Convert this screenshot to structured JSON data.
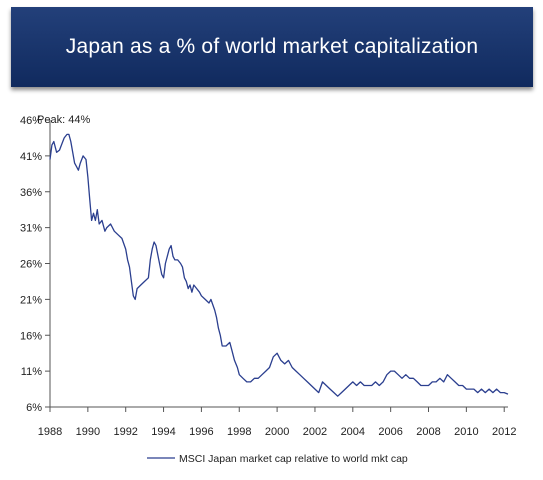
{
  "header": {
    "title": "Japan as a % of world market capitalization"
  },
  "chart_data": {
    "type": "line",
    "title": "Japan as a % of world market capitalization",
    "xlabel": "",
    "ylabel": "",
    "xlim": [
      1988,
      2012.2
    ],
    "ylim": [
      6,
      46
    ],
    "x_ticks": [
      "1988",
      "1990",
      "1992",
      "1994",
      "1996",
      "1998",
      "2000",
      "2002",
      "2004",
      "2006",
      "2008",
      "2010",
      "2012"
    ],
    "y_ticks": [
      "6%",
      "11%",
      "16%",
      "21%",
      "26%",
      "31%",
      "36%",
      "41%",
      "46%"
    ],
    "annotation": {
      "text": "Peak: 44%",
      "x": 1988.9,
      "y": 44
    },
    "legend": {
      "position": "bottom-center"
    },
    "series": [
      {
        "name": "MSCI Japan market cap relative to world mkt cap",
        "color": "#2b3f8f",
        "points": [
          [
            1988.0,
            40.5
          ],
          [
            1988.1,
            42.5
          ],
          [
            1988.2,
            43.0
          ],
          [
            1988.35,
            41.5
          ],
          [
            1988.5,
            41.8
          ],
          [
            1988.6,
            42.5
          ],
          [
            1988.75,
            43.5
          ],
          [
            1988.9,
            44.0
          ],
          [
            1989.0,
            44.0
          ],
          [
            1989.1,
            43.0
          ],
          [
            1989.2,
            41.5
          ],
          [
            1989.3,
            40.0
          ],
          [
            1989.4,
            39.5
          ],
          [
            1989.5,
            39.0
          ],
          [
            1989.6,
            40.0
          ],
          [
            1989.75,
            41.0
          ],
          [
            1989.9,
            40.5
          ],
          [
            1990.0,
            38.0
          ],
          [
            1990.1,
            35.0
          ],
          [
            1990.2,
            32.0
          ],
          [
            1990.3,
            33.0
          ],
          [
            1990.4,
            32.0
          ],
          [
            1990.5,
            33.5
          ],
          [
            1990.6,
            31.5
          ],
          [
            1990.75,
            32.0
          ],
          [
            1990.9,
            30.5
          ],
          [
            1991.0,
            31.0
          ],
          [
            1991.2,
            31.5
          ],
          [
            1991.4,
            30.5
          ],
          [
            1991.6,
            30.0
          ],
          [
            1991.8,
            29.5
          ],
          [
            1992.0,
            28.0
          ],
          [
            1992.1,
            26.5
          ],
          [
            1992.2,
            25.5
          ],
          [
            1992.3,
            23.5
          ],
          [
            1992.4,
            21.5
          ],
          [
            1992.5,
            21.0
          ],
          [
            1992.6,
            22.5
          ],
          [
            1992.8,
            23.0
          ],
          [
            1993.0,
            23.5
          ],
          [
            1993.2,
            24.0
          ],
          [
            1993.3,
            26.5
          ],
          [
            1993.4,
            28.0
          ],
          [
            1993.5,
            29.0
          ],
          [
            1993.6,
            28.5
          ],
          [
            1993.75,
            26.5
          ],
          [
            1993.9,
            24.5
          ],
          [
            1994.0,
            24.0
          ],
          [
            1994.1,
            26.0
          ],
          [
            1994.2,
            27.0
          ],
          [
            1994.3,
            28.0
          ],
          [
            1994.4,
            28.5
          ],
          [
            1994.5,
            27.0
          ],
          [
            1994.6,
            26.5
          ],
          [
            1994.75,
            26.5
          ],
          [
            1994.9,
            26.0
          ],
          [
            1995.0,
            25.5
          ],
          [
            1995.1,
            24.0
          ],
          [
            1995.2,
            23.5
          ],
          [
            1995.3,
            22.5
          ],
          [
            1995.4,
            23.0
          ],
          [
            1995.5,
            22.0
          ],
          [
            1995.6,
            23.0
          ],
          [
            1995.75,
            22.5
          ],
          [
            1995.9,
            22.0
          ],
          [
            1996.0,
            21.5
          ],
          [
            1996.2,
            21.0
          ],
          [
            1996.4,
            20.5
          ],
          [
            1996.5,
            21.0
          ],
          [
            1996.7,
            19.5
          ],
          [
            1996.8,
            18.5
          ],
          [
            1996.9,
            17.0
          ],
          [
            1997.0,
            16.0
          ],
          [
            1997.1,
            14.5
          ],
          [
            1997.3,
            14.5
          ],
          [
            1997.5,
            15.0
          ],
          [
            1997.6,
            14.0
          ],
          [
            1997.75,
            12.5
          ],
          [
            1997.9,
            11.5
          ],
          [
            1998.0,
            10.5
          ],
          [
            1998.2,
            10.0
          ],
          [
            1998.4,
            9.5
          ],
          [
            1998.6,
            9.5
          ],
          [
            1998.8,
            10.0
          ],
          [
            1999.0,
            10.0
          ],
          [
            1999.2,
            10.5
          ],
          [
            1999.4,
            11.0
          ],
          [
            1999.6,
            11.5
          ],
          [
            1999.8,
            13.0
          ],
          [
            2000.0,
            13.5
          ],
          [
            2000.2,
            12.5
          ],
          [
            2000.4,
            12.0
          ],
          [
            2000.6,
            12.5
          ],
          [
            2000.8,
            11.5
          ],
          [
            2001.0,
            11.0
          ],
          [
            2001.2,
            10.5
          ],
          [
            2001.4,
            10.0
          ],
          [
            2001.6,
            9.5
          ],
          [
            2001.8,
            9.0
          ],
          [
            2002.0,
            8.5
          ],
          [
            2002.2,
            8.0
          ],
          [
            2002.4,
            9.5
          ],
          [
            2002.6,
            9.0
          ],
          [
            2002.8,
            8.5
          ],
          [
            2003.0,
            8.0
          ],
          [
            2003.2,
            7.5
          ],
          [
            2003.4,
            8.0
          ],
          [
            2003.6,
            8.5
          ],
          [
            2003.8,
            9.0
          ],
          [
            2004.0,
            9.5
          ],
          [
            2004.2,
            9.0
          ],
          [
            2004.4,
            9.5
          ],
          [
            2004.6,
            9.0
          ],
          [
            2004.8,
            9.0
          ],
          [
            2005.0,
            9.0
          ],
          [
            2005.2,
            9.5
          ],
          [
            2005.4,
            9.0
          ],
          [
            2005.6,
            9.5
          ],
          [
            2005.8,
            10.5
          ],
          [
            2006.0,
            11.0
          ],
          [
            2006.2,
            11.0
          ],
          [
            2006.4,
            10.5
          ],
          [
            2006.6,
            10.0
          ],
          [
            2006.8,
            10.5
          ],
          [
            2007.0,
            10.0
          ],
          [
            2007.2,
            10.0
          ],
          [
            2007.4,
            9.5
          ],
          [
            2007.6,
            9.0
          ],
          [
            2007.8,
            9.0
          ],
          [
            2008.0,
            9.0
          ],
          [
            2008.2,
            9.5
          ],
          [
            2008.4,
            9.5
          ],
          [
            2008.6,
            10.0
          ],
          [
            2008.8,
            9.5
          ],
          [
            2009.0,
            10.5
          ],
          [
            2009.2,
            10.0
          ],
          [
            2009.4,
            9.5
          ],
          [
            2009.6,
            9.0
          ],
          [
            2009.8,
            9.0
          ],
          [
            2010.0,
            8.5
          ],
          [
            2010.2,
            8.5
          ],
          [
            2010.4,
            8.5
          ],
          [
            2010.6,
            8.0
          ],
          [
            2010.8,
            8.5
          ],
          [
            2011.0,
            8.0
          ],
          [
            2011.2,
            8.5
          ],
          [
            2011.4,
            8.0
          ],
          [
            2011.6,
            8.5
          ],
          [
            2011.8,
            8.0
          ],
          [
            2012.0,
            8.0
          ],
          [
            2012.2,
            7.8
          ]
        ]
      }
    ]
  }
}
